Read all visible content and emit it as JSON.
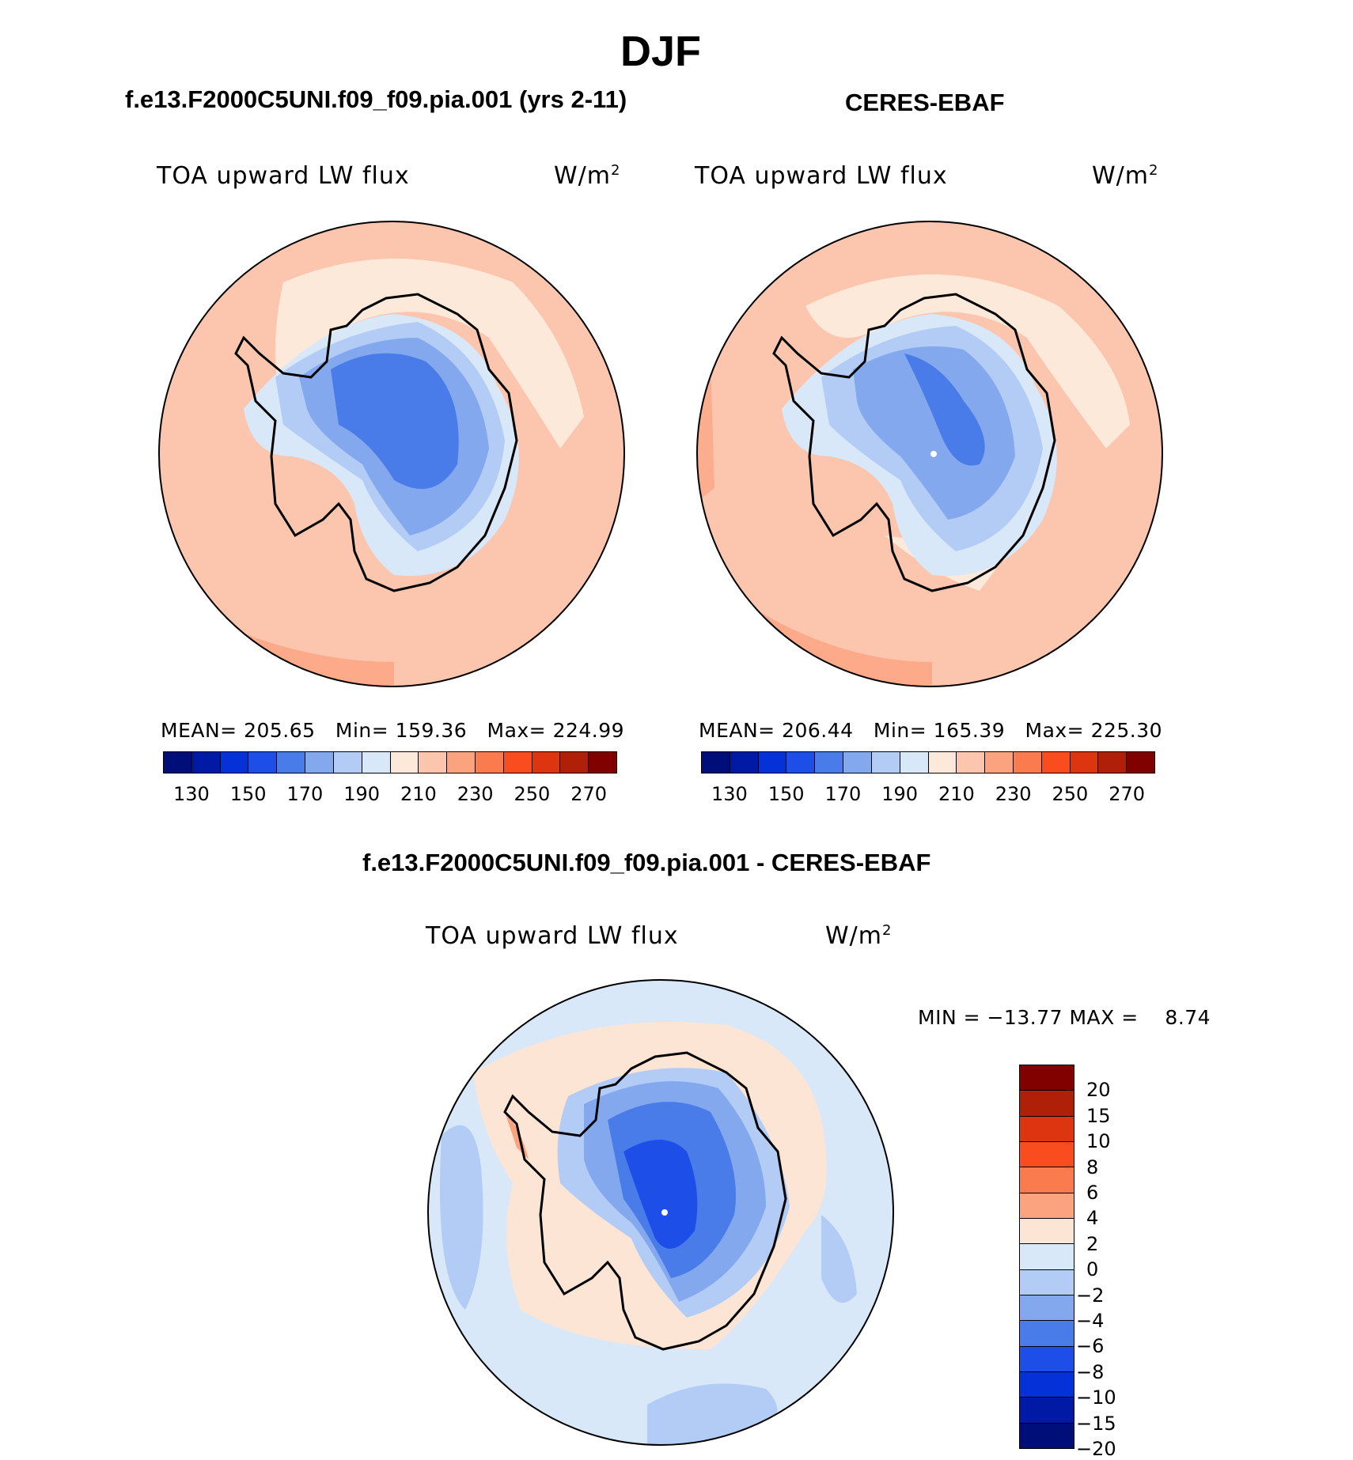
{
  "title": "DJF",
  "panels": [
    {
      "title": "f.e13.F2000C5UNI.f09_f09.pia.001 (yrs 2-11)",
      "variable": "TOA upward LW flux",
      "units": "W/m",
      "units_exp": "2",
      "stats": {
        "mean_label": "MEAN=",
        "mean": "205.65",
        "min_label": "Min=",
        "min": "159.36",
        "max_label": "Max=",
        "max": "224.99"
      }
    },
    {
      "title": "CERES-EBAF",
      "variable": "TOA upward LW flux",
      "units": "W/m",
      "units_exp": "2",
      "stats": {
        "mean_label": "MEAN=",
        "mean": "206.44",
        "min_label": "Min=",
        "min": "165.39",
        "max_label": "Max=",
        "max": "225.30"
      }
    }
  ],
  "difference": {
    "title": "f.e13.F2000C5UNI.f09_f09.pia.001 - CERES-EBAF",
    "variable": "TOA upward LW flux",
    "units": "W/m",
    "units_exp": "2",
    "minmax_text": "MIN = −13.77 MAX =    8.74"
  },
  "colorbar_abs": {
    "colors": [
      "#000e7a",
      "#001aa6",
      "#0532d8",
      "#1d4fe8",
      "#4a7ce9",
      "#83a8ee",
      "#b2ccf5",
      "#d8e8f9",
      "#fde9da",
      "#fcc6ae",
      "#fba27f",
      "#fa7b4d",
      "#fa4d1f",
      "#dc3510",
      "#b01f08",
      "#810000"
    ],
    "labels": [
      "130",
      "150",
      "170",
      "190",
      "210",
      "230",
      "250",
      "270"
    ]
  },
  "colorbar_diff": {
    "colors": [
      "#810000",
      "#b01f08",
      "#dc3510",
      "#fa4d1f",
      "#fa7b4d",
      "#fba27f",
      "#fde5d5",
      "#d8e8f9",
      "#b2ccf5",
      "#83a8ee",
      "#4a7ce9",
      "#1d4fe8",
      "#0532d8",
      "#001aa6",
      "#000e7a"
    ],
    "labels": [
      "20",
      "15",
      "10",
      "8",
      "6",
      "4",
      "2",
      "0",
      "−2",
      "−4",
      "−6",
      "−8",
      "−10",
      "−15",
      "−20"
    ]
  }
}
